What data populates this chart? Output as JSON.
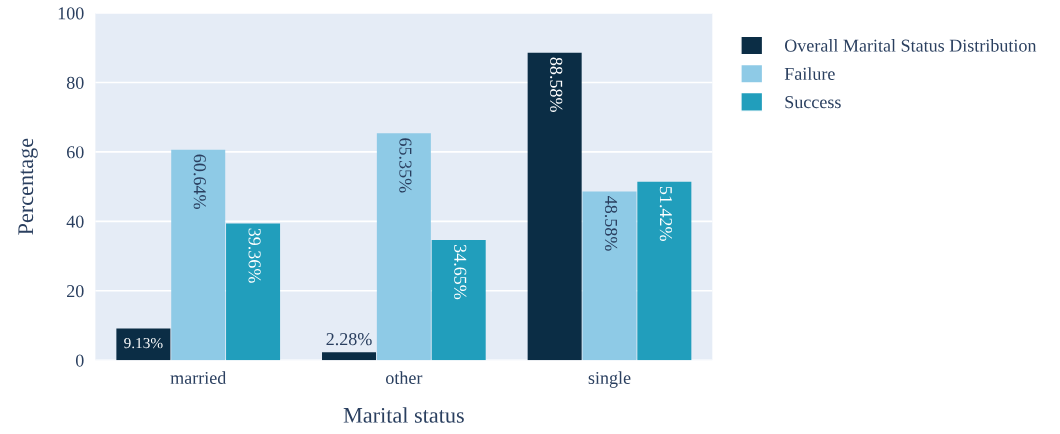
{
  "chart_data": {
    "type": "bar",
    "xlabel": "Marital status",
    "ylabel": "Percentage",
    "categories": [
      "married",
      "other",
      "single"
    ],
    "series": [
      {
        "name": "Overall Marital Status Distribution",
        "color": "#0b2d45",
        "values": [
          9.13,
          2.28,
          88.58
        ],
        "value_labels": [
          "9.13%",
          "2.28%",
          "88.58%"
        ]
      },
      {
        "name": "Failure",
        "color": "#8ecae6",
        "values": [
          60.64,
          65.35,
          48.58
        ],
        "value_labels": [
          "60.64%",
          "65.35%",
          "48.58%"
        ]
      },
      {
        "name": "Success",
        "color": "#219ebc",
        "values": [
          39.36,
          34.65,
          51.42
        ],
        "value_labels": [
          "39.36%",
          "34.65%",
          "51.42%"
        ]
      }
    ],
    "ylim": [
      0,
      100
    ],
    "yticks": [
      0,
      20,
      40,
      60,
      80,
      100
    ],
    "grid": "y",
    "legend": "top right"
  }
}
